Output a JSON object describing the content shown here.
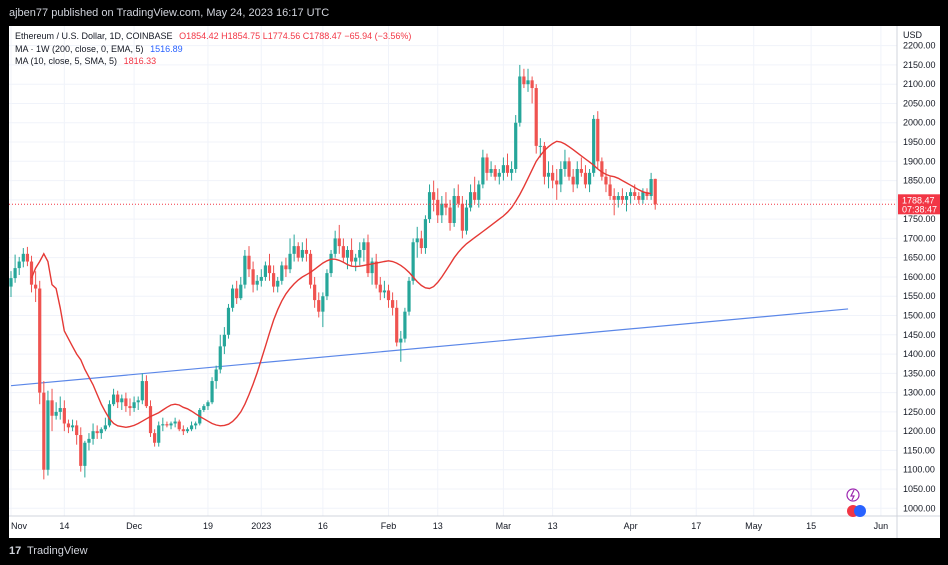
{
  "header": {
    "published": "ajben77 published on TradingView.com, May 24, 2023 16:17 UTC"
  },
  "legend": {
    "symbol": "Ethereum / U.S. Dollar, 1D, COINBASE",
    "o": "O1854.42",
    "h": "H1854.75",
    "l": "L1774.56",
    "c": "C1788.47",
    "chg": "−65.94 (−3.56%)",
    "ma1_label": "MA · 1W (200, close, 0, EMA, 5)",
    "ma1_value": "1516.89",
    "ma2_label": "MA (10, close, 5, SMA, 5)",
    "ma2_value": "1816.33"
  },
  "footer": {
    "brand": "TradingView",
    "logo": "17"
  },
  "colors": {
    "up": "#26a69a",
    "down": "#ef5350",
    "ma_sma": "#e53935",
    "ma_ema": "#5b87e8",
    "price_tag": "#f23645",
    "background": "#ffffff",
    "grid": "#f0f3fa"
  },
  "chart_data": {
    "type": "candlestick",
    "currency_label": "USD",
    "y_ticks": [
      "1000.00",
      "1050.00",
      "1100.00",
      "1150.00",
      "1200.00",
      "1250.00",
      "1300.00",
      "1350.00",
      "1400.00",
      "1450.00",
      "1500.00",
      "1550.00",
      "1600.00",
      "1650.00",
      "1700.00",
      "1750.00",
      "1800.00",
      "1850.00",
      "1900.00",
      "1950.00",
      "2000.00",
      "2050.00",
      "2100.00",
      "2150.00",
      "2200.00"
    ],
    "ylim": [
      980,
      2225
    ],
    "x_range": [
      "2022-11-01",
      "2023-06-02"
    ],
    "x_ticks": [
      {
        "date": "2022-11-01",
        "label": "Nov"
      },
      {
        "date": "2022-11-14",
        "label": "14"
      },
      {
        "date": "2022-12-01",
        "label": "Dec"
      },
      {
        "date": "2022-12-19",
        "label": "19"
      },
      {
        "date": "2023-01-01",
        "label": "2023"
      },
      {
        "date": "2023-01-16",
        "label": "16"
      },
      {
        "date": "2023-02-01",
        "label": "Feb"
      },
      {
        "date": "2023-02-13",
        "label": "13"
      },
      {
        "date": "2023-03-01",
        "label": "Mar"
      },
      {
        "date": "2023-03-13",
        "label": "13"
      },
      {
        "date": "2023-04-01",
        "label": "Apr"
      },
      {
        "date": "2023-04-17",
        "label": "17"
      },
      {
        "date": "2023-05-01",
        "label": "May"
      },
      {
        "date": "2023-05-15",
        "label": "15"
      },
      {
        "date": "2023-06-01",
        "label": "Jun"
      }
    ],
    "last_price": {
      "value": "1788.47",
      "countdown": "07:38:47"
    },
    "price_line": 1788.47,
    "grid": true,
    "ohlc": [
      [
        1575,
        1615,
        1548,
        1597
      ],
      [
        1597,
        1658,
        1585,
        1623
      ],
      [
        1623,
        1652,
        1605,
        1640
      ],
      [
        1640,
        1675,
        1625,
        1660
      ],
      [
        1660,
        1678,
        1628,
        1640
      ],
      [
        1640,
        1655,
        1560,
        1580
      ],
      [
        1580,
        1615,
        1535,
        1570
      ],
      [
        1570,
        1590,
        1270,
        1300
      ],
      [
        1300,
        1330,
        1075,
        1100
      ],
      [
        1100,
        1305,
        1085,
        1280
      ],
      [
        1280,
        1310,
        1200,
        1240
      ],
      [
        1240,
        1275,
        1230,
        1250
      ],
      [
        1250,
        1290,
        1230,
        1260
      ],
      [
        1260,
        1280,
        1200,
        1220
      ],
      [
        1220,
        1230,
        1195,
        1210
      ],
      [
        1210,
        1230,
        1200,
        1215
      ],
      [
        1215,
        1228,
        1165,
        1190
      ],
      [
        1190,
        1210,
        1095,
        1110
      ],
      [
        1110,
        1175,
        1080,
        1170
      ],
      [
        1170,
        1195,
        1150,
        1180
      ],
      [
        1180,
        1220,
        1165,
        1200
      ],
      [
        1200,
        1215,
        1180,
        1195
      ],
      [
        1195,
        1210,
        1180,
        1205
      ],
      [
        1205,
        1235,
        1200,
        1215
      ],
      [
        1215,
        1280,
        1210,
        1270
      ],
      [
        1270,
        1310,
        1265,
        1295
      ],
      [
        1295,
        1305,
        1260,
        1275
      ],
      [
        1275,
        1295,
        1255,
        1285
      ],
      [
        1285,
        1300,
        1250,
        1265
      ],
      [
        1265,
        1285,
        1240,
        1260
      ],
      [
        1260,
        1290,
        1250,
        1275
      ],
      [
        1275,
        1290,
        1255,
        1280
      ],
      [
        1280,
        1350,
        1270,
        1330
      ],
      [
        1330,
        1345,
        1260,
        1265
      ],
      [
        1265,
        1280,
        1185,
        1195
      ],
      [
        1195,
        1205,
        1160,
        1170
      ],
      [
        1170,
        1225,
        1160,
        1215
      ],
      [
        1215,
        1235,
        1200,
        1218
      ],
      [
        1218,
        1225,
        1210,
        1215
      ],
      [
        1215,
        1225,
        1205,
        1220
      ],
      [
        1220,
        1235,
        1210,
        1225
      ],
      [
        1225,
        1230,
        1200,
        1205
      ],
      [
        1205,
        1215,
        1190,
        1200
      ],
      [
        1200,
        1210,
        1195,
        1205
      ],
      [
        1205,
        1225,
        1200,
        1215
      ],
      [
        1215,
        1225,
        1205,
        1220
      ],
      [
        1220,
        1260,
        1215,
        1255
      ],
      [
        1255,
        1270,
        1250,
        1265
      ],
      [
        1265,
        1280,
        1255,
        1275
      ],
      [
        1275,
        1340,
        1270,
        1330
      ],
      [
        1330,
        1370,
        1310,
        1360
      ],
      [
        1360,
        1450,
        1350,
        1420
      ],
      [
        1420,
        1470,
        1400,
        1450
      ],
      [
        1450,
        1530,
        1440,
        1520
      ],
      [
        1520,
        1580,
        1510,
        1570
      ],
      [
        1570,
        1590,
        1530,
        1545
      ],
      [
        1545,
        1600,
        1540,
        1580
      ],
      [
        1580,
        1670,
        1570,
        1655
      ],
      [
        1655,
        1680,
        1600,
        1620
      ],
      [
        1620,
        1640,
        1560,
        1580
      ],
      [
        1580,
        1605,
        1565,
        1590
      ],
      [
        1590,
        1620,
        1575,
        1600
      ],
      [
        1600,
        1640,
        1590,
        1630
      ],
      [
        1630,
        1660,
        1590,
        1610
      ],
      [
        1610,
        1630,
        1560,
        1575
      ],
      [
        1575,
        1600,
        1560,
        1590
      ],
      [
        1590,
        1640,
        1580,
        1630
      ],
      [
        1630,
        1650,
        1600,
        1620
      ],
      [
        1620,
        1700,
        1610,
        1660
      ],
      [
        1660,
        1710,
        1640,
        1680
      ],
      [
        1680,
        1690,
        1640,
        1650
      ],
      [
        1650,
        1690,
        1640,
        1670
      ],
      [
        1670,
        1700,
        1640,
        1660
      ],
      [
        1660,
        1670,
        1570,
        1580
      ],
      [
        1580,
        1600,
        1520,
        1540
      ],
      [
        1540,
        1560,
        1495,
        1510
      ],
      [
        1510,
        1560,
        1470,
        1550
      ],
      [
        1550,
        1620,
        1540,
        1610
      ],
      [
        1610,
        1670,
        1600,
        1660
      ],
      [
        1660,
        1720,
        1650,
        1700
      ],
      [
        1700,
        1735,
        1660,
        1680
      ],
      [
        1680,
        1700,
        1640,
        1650
      ],
      [
        1650,
        1680,
        1620,
        1670
      ],
      [
        1670,
        1700,
        1630,
        1640
      ],
      [
        1640,
        1660,
        1615,
        1650
      ],
      [
        1650,
        1690,
        1630,
        1670
      ],
      [
        1670,
        1700,
        1640,
        1690
      ],
      [
        1690,
        1710,
        1600,
        1610
      ],
      [
        1610,
        1650,
        1580,
        1640
      ],
      [
        1640,
        1660,
        1570,
        1580
      ],
      [
        1580,
        1600,
        1540,
        1560
      ],
      [
        1560,
        1590,
        1545,
        1565
      ],
      [
        1565,
        1580,
        1520,
        1540
      ],
      [
        1540,
        1560,
        1500,
        1520
      ],
      [
        1520,
        1540,
        1420,
        1430
      ],
      [
        1430,
        1460,
        1380,
        1440
      ],
      [
        1440,
        1520,
        1430,
        1510
      ],
      [
        1510,
        1600,
        1500,
        1590
      ],
      [
        1590,
        1700,
        1580,
        1690
      ],
      [
        1690,
        1730,
        1650,
        1700
      ],
      [
        1700,
        1720,
        1660,
        1675
      ],
      [
        1675,
        1760,
        1660,
        1750
      ],
      [
        1750,
        1840,
        1740,
        1820
      ],
      [
        1820,
        1850,
        1770,
        1800
      ],
      [
        1800,
        1830,
        1740,
        1760
      ],
      [
        1760,
        1810,
        1740,
        1790
      ],
      [
        1790,
        1820,
        1760,
        1780
      ],
      [
        1780,
        1800,
        1720,
        1740
      ],
      [
        1740,
        1830,
        1730,
        1810
      ],
      [
        1810,
        1840,
        1780,
        1790
      ],
      [
        1790,
        1810,
        1700,
        1720
      ],
      [
        1720,
        1800,
        1710,
        1780
      ],
      [
        1780,
        1840,
        1770,
        1820
      ],
      [
        1820,
        1860,
        1790,
        1800
      ],
      [
        1800,
        1850,
        1780,
        1840
      ],
      [
        1840,
        1930,
        1830,
        1910
      ],
      [
        1910,
        1920,
        1850,
        1870
      ],
      [
        1870,
        1900,
        1860,
        1880
      ],
      [
        1880,
        1890,
        1850,
        1860
      ],
      [
        1860,
        1880,
        1840,
        1870
      ],
      [
        1870,
        1910,
        1850,
        1890
      ],
      [
        1890,
        1920,
        1860,
        1870
      ],
      [
        1870,
        1900,
        1850,
        1880
      ],
      [
        1880,
        2020,
        1870,
        2000
      ],
      [
        2000,
        2150,
        1990,
        2120
      ],
      [
        2120,
        2140,
        2090,
        2100
      ],
      [
        2100,
        2140,
        2080,
        2110
      ],
      [
        2110,
        2120,
        2050,
        2090
      ],
      [
        2090,
        2100,
        1920,
        1940
      ],
      [
        1940,
        1960,
        1910,
        1940
      ],
      [
        1940,
        1950,
        1840,
        1860
      ],
      [
        1860,
        1900,
        1830,
        1870
      ],
      [
        1870,
        1890,
        1830,
        1850
      ],
      [
        1850,
        1880,
        1800,
        1840
      ],
      [
        1840,
        1900,
        1820,
        1880
      ],
      [
        1880,
        1930,
        1860,
        1900
      ],
      [
        1900,
        1910,
        1850,
        1860
      ],
      [
        1860,
        1880,
        1820,
        1840
      ],
      [
        1840,
        1900,
        1830,
        1880
      ],
      [
        1880,
        1910,
        1860,
        1870
      ],
      [
        1870,
        1890,
        1830,
        1840
      ],
      [
        1840,
        1880,
        1820,
        1870
      ],
      [
        1870,
        2020,
        1860,
        2010
      ],
      [
        2010,
        2030,
        1880,
        1900
      ],
      [
        1900,
        1910,
        1850,
        1860
      ],
      [
        1860,
        1880,
        1820,
        1840
      ],
      [
        1840,
        1860,
        1800,
        1810
      ],
      [
        1810,
        1830,
        1760,
        1800
      ],
      [
        1800,
        1820,
        1780,
        1810
      ],
      [
        1810,
        1830,
        1790,
        1800
      ],
      [
        1800,
        1820,
        1770,
        1810
      ],
      [
        1810,
        1830,
        1790,
        1820
      ],
      [
        1820,
        1840,
        1800,
        1810
      ],
      [
        1810,
        1820,
        1790,
        1800
      ],
      [
        1800,
        1830,
        1790,
        1820
      ],
      [
        1820,
        1830,
        1800,
        1810
      ],
      [
        1810,
        1870,
        1800,
        1854
      ],
      [
        1854.42,
        1854.75,
        1774.56,
        1788.47
      ]
    ],
    "ma_sma_10": [
      1597,
      1623,
      1640,
      1660,
      1640,
      1580,
      1570,
      1520,
      1460,
      1440,
      1420,
      1400,
      1385,
      1360,
      1340,
      1320,
      1295,
      1270,
      1250,
      1232,
      1220,
      1214,
      1212,
      1210,
      1212,
      1215,
      1220,
      1226,
      1232,
      1238,
      1243,
      1248,
      1255,
      1262,
      1268,
      1270,
      1268,
      1262,
      1258,
      1252,
      1245,
      1238,
      1232,
      1226,
      1220,
      1216,
      1214,
      1215,
      1218,
      1225,
      1236,
      1250,
      1270,
      1295,
      1322,
      1352,
      1386,
      1420,
      1455,
      1488,
      1515,
      1538,
      1556,
      1570,
      1582,
      1592,
      1600,
      1606,
      1612,
      1620,
      1628,
      1636,
      1642,
      1646,
      1646,
      1643,
      1638,
      1632,
      1628,
      1627,
      1628,
      1630,
      1632,
      1634,
      1636,
      1638,
      1640,
      1642,
      1640,
      1636,
      1630,
      1622,
      1612,
      1600,
      1588,
      1578,
      1572,
      1570,
      1575,
      1586,
      1600,
      1616,
      1633,
      1650,
      1664,
      1676,
      1686,
      1694,
      1702,
      1710,
      1718,
      1726,
      1734,
      1742,
      1750,
      1758,
      1768,
      1780,
      1796,
      1814,
      1834,
      1856,
      1878,
      1900,
      1915,
      1928,
      1938,
      1946,
      1952,
      1950,
      1945,
      1938,
      1930,
      1922,
      1914,
      1906,
      1898,
      1890,
      1880,
      1872,
      1866,
      1862,
      1860,
      1856,
      1850,
      1844,
      1838,
      1832,
      1826,
      1821,
      1818,
      1816
    ],
    "ema_200w": {
      "x": [
        "2022-11-01",
        "2023-05-24"
      ],
      "y": [
        1318,
        1517
      ]
    }
  }
}
